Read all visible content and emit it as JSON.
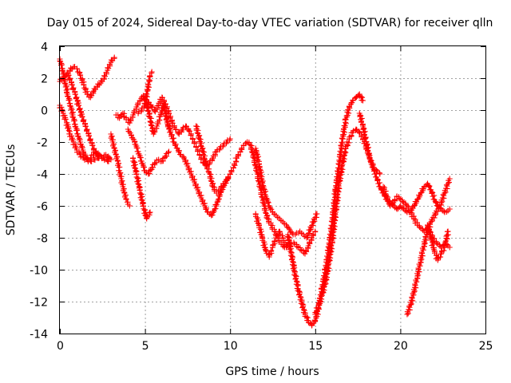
{
  "chart_data": {
    "type": "scatter",
    "title": "Day 015 of 2024, Sidereal Day-to-day VTEC variation (SDTVAR) for receiver qlln",
    "xlabel": "GPS time / hours",
    "ylabel": "SDTVAR / TECUs",
    "xlim": [
      0,
      25
    ],
    "ylim": [
      -14,
      4
    ],
    "x_ticks": [
      0,
      5,
      10,
      15,
      20,
      25
    ],
    "y_ticks": [
      -14,
      -12,
      -10,
      -8,
      -6,
      -4,
      -2,
      0,
      2,
      4
    ],
    "x_tick_labels": [
      "0",
      "5",
      "10",
      "15",
      "20",
      "25"
    ],
    "y_tick_labels": [
      "-14",
      "-12",
      "-10",
      "-8",
      "-6",
      "-4",
      "-2",
      "0",
      "2",
      "4"
    ],
    "grid": true,
    "marker": "+",
    "color": "#ff0000",
    "series": [
      {
        "x": [
          0.0,
          0.15,
          0.3,
          0.45,
          0.6,
          0.75,
          0.9,
          1.05,
          1.2,
          1.35,
          1.5,
          1.65,
          1.8,
          1.95,
          2.1,
          2.25,
          2.4,
          2.55,
          2.7,
          2.85,
          3.0
        ],
        "values": [
          3.2,
          2.6,
          1.8,
          1.0,
          0.4,
          -0.3,
          -0.9,
          -1.5,
          -2.0,
          -2.5,
          -2.9,
          -3.1,
          -3.0,
          -2.8,
          -2.6,
          -2.7,
          -2.9,
          -3.0,
          -2.8,
          -2.9,
          -3.1
        ]
      },
      {
        "x": [
          0.0,
          0.2,
          0.4,
          0.6,
          0.8,
          1.0,
          1.2,
          1.4,
          1.6,
          1.8,
          2.0,
          2.2,
          2.4,
          2.6,
          2.8,
          3.0,
          3.2
        ],
        "values": [
          1.8,
          2.0,
          2.2,
          2.5,
          2.7,
          2.6,
          2.2,
          1.6,
          1.0,
          0.8,
          1.2,
          1.5,
          1.7,
          2.0,
          2.5,
          3.0,
          3.3
        ]
      },
      {
        "x": [
          0.0,
          0.2,
          0.4,
          0.6,
          0.8,
          1.0,
          1.2,
          1.4,
          1.6,
          1.8,
          2.0,
          2.2,
          2.4,
          2.6,
          2.8,
          3.0
        ],
        "values": [
          0.3,
          -0.2,
          -0.8,
          -1.5,
          -2.0,
          -2.5,
          -2.8,
          -3.0,
          -3.1,
          -3.2,
          -3.1,
          -3.0,
          -2.9,
          -3.0,
          -3.2,
          -3.1
        ]
      },
      {
        "x": [
          0.5,
          0.7,
          0.9,
          1.1,
          1.3,
          1.5,
          1.7,
          1.9,
          2.1,
          2.3
        ],
        "values": [
          2.2,
          1.6,
          1.0,
          0.3,
          -0.4,
          -1.0,
          -1.6,
          -2.2,
          -2.7,
          -3.0
        ]
      },
      {
        "x": [
          3.0,
          3.1,
          3.2,
          3.3,
          3.4,
          3.5,
          3.6,
          3.7,
          3.8,
          3.9,
          4.0,
          4.1
        ],
        "values": [
          -1.5,
          -2.0,
          -2.4,
          -2.8,
          -3.2,
          -3.8,
          -4.3,
          -4.8,
          -5.2,
          -5.6,
          -5.9,
          -6.0
        ]
      },
      {
        "x": [
          3.3,
          3.5,
          3.7,
          3.9,
          4.1,
          4.3,
          4.5,
          4.7,
          4.9,
          5.1,
          5.3,
          5.5,
          5.7,
          5.9,
          6.1,
          6.3,
          6.5
        ],
        "values": [
          -0.3,
          -0.5,
          -0.2,
          -0.6,
          -0.8,
          -0.3,
          0.2,
          0.6,
          0.9,
          0.4,
          -0.5,
          -1.5,
          -1.0,
          -0.4,
          0.4,
          -0.7,
          -1.3
        ]
      },
      {
        "x": [
          4.0,
          4.2,
          4.4,
          4.6,
          4.8,
          5.0,
          5.2,
          5.4,
          5.6,
          5.8,
          6.0,
          6.2,
          6.4
        ],
        "values": [
          -1.2,
          -1.6,
          -2.0,
          -2.6,
          -3.2,
          -3.8,
          -4.0,
          -3.6,
          -3.3,
          -3.1,
          -3.2,
          -2.9,
          -2.6
        ]
      },
      {
        "x": [
          4.3,
          4.5,
          4.7,
          4.9,
          5.1,
          5.3
        ],
        "values": [
          -3.0,
          -4.0,
          -5.0,
          -6.0,
          -6.8,
          -6.4
        ]
      },
      {
        "x": [
          5.0,
          5.1,
          5.2,
          5.3,
          5.4
        ],
        "values": [
          0.4,
          1.0,
          1.6,
          2.1,
          2.4
        ]
      },
      {
        "x": [
          4.6,
          4.8,
          5.0,
          5.2,
          5.4,
          5.6,
          5.8,
          6.0,
          6.2,
          6.4,
          6.6,
          6.8,
          7.0,
          7.2,
          7.4,
          7.6,
          7.8,
          8.0,
          8.2,
          8.4,
          8.6,
          8.8,
          9.0,
          9.2,
          9.4,
          9.6,
          9.8,
          10.0
        ],
        "values": [
          -0.2,
          0.0,
          0.3,
          0.5,
          0.2,
          -0.1,
          0.3,
          0.8,
          0.4,
          -0.2,
          -0.8,
          -1.2,
          -1.5,
          -1.2,
          -1.0,
          -1.3,
          -1.8,
          -2.3,
          -2.8,
          -3.3,
          -3.5,
          -3.3,
          -3.0,
          -2.6,
          -2.4,
          -2.2,
          -2.0,
          -1.8
        ]
      },
      {
        "x": [
          6.3,
          6.5,
          6.7,
          6.9,
          7.1,
          7.3,
          7.5,
          7.7,
          7.9,
          8.1,
          8.3,
          8.5,
          8.7,
          8.9,
          9.1,
          9.3,
          9.5,
          9.7,
          9.9
        ],
        "values": [
          -0.8,
          -1.4,
          -2.0,
          -2.4,
          -2.8,
          -3.0,
          -3.5,
          -4.0,
          -4.5,
          -5.0,
          -5.5,
          -6.0,
          -6.4,
          -6.6,
          -6.2,
          -5.6,
          -5.0,
          -4.6,
          -4.2
        ]
      },
      {
        "x": [
          8.0,
          8.2,
          8.4,
          8.6,
          8.8,
          9.0,
          9.2,
          9.4,
          9.6,
          9.8,
          10.0,
          10.2,
          10.4,
          10.6,
          10.8,
          11.0,
          11.2,
          11.4,
          11.6,
          11.8,
          12.0,
          12.2,
          12.4,
          12.6,
          12.8,
          13.0,
          13.2,
          13.4,
          13.6,
          13.8,
          14.0,
          14.2,
          14.4,
          14.6,
          14.8,
          15.0
        ],
        "values": [
          -1.0,
          -1.8,
          -2.6,
          -3.4,
          -4.0,
          -4.8,
          -5.2,
          -5.0,
          -4.6,
          -4.4,
          -4.0,
          -3.6,
          -3.0,
          -2.6,
          -2.2,
          -2.0,
          -2.2,
          -3.0,
          -4.0,
          -5.0,
          -6.0,
          -6.8,
          -7.2,
          -7.6,
          -8.0,
          -8.4,
          -8.6,
          -8.5,
          -8.3,
          -8.4,
          -8.6,
          -8.8,
          -9.0,
          -8.5,
          -8.0,
          -7.6
        ]
      },
      {
        "x": [
          11.5,
          11.7,
          11.9,
          12.1,
          12.3,
          12.5,
          12.7,
          12.9,
          13.1,
          13.3,
          13.5,
          13.7,
          13.9,
          14.1,
          14.3,
          14.5,
          14.7,
          14.9,
          15.1
        ],
        "values": [
          -2.4,
          -3.4,
          -4.6,
          -5.4,
          -6.0,
          -6.4,
          -6.6,
          -6.8,
          -7.0,
          -7.2,
          -7.5,
          -7.8,
          -7.7,
          -7.6,
          -7.8,
          -8.0,
          -7.5,
          -7.0,
          -6.5
        ]
      },
      {
        "x": [
          11.5,
          11.7,
          11.9,
          12.1,
          12.3,
          12.5,
          12.7,
          12.9,
          13.1,
          13.3
        ],
        "values": [
          -6.5,
          -7.2,
          -8.0,
          -8.8,
          -9.2,
          -8.6,
          -8.0,
          -7.6,
          -8.0,
          -8.6
        ]
      },
      {
        "x": [
          13.4,
          13.6,
          13.8,
          14.0,
          14.2,
          14.4,
          14.6,
          14.8,
          15.0,
          15.2,
          15.4,
          15.6,
          15.8,
          16.0,
          16.2,
          16.4,
          16.6,
          16.8,
          17.0,
          17.2,
          17.4,
          17.6,
          17.8
        ],
        "values": [
          -7.8,
          -9.0,
          -10.2,
          -11.2,
          -12.0,
          -12.8,
          -13.2,
          -13.5,
          -13.2,
          -12.4,
          -11.2,
          -10.0,
          -8.6,
          -7.0,
          -5.0,
          -3.4,
          -1.8,
          -0.6,
          0.2,
          0.6,
          0.8,
          1.0,
          0.6
        ]
      },
      {
        "x": [
          15.0,
          15.2,
          15.4,
          15.6,
          15.8,
          16.0,
          16.2,
          16.4,
          16.6,
          16.8,
          17.0,
          17.2,
          17.4,
          17.6,
          17.8,
          18.0,
          18.2,
          18.4,
          18.6,
          18.8
        ],
        "values": [
          -12.8,
          -12.2,
          -11.6,
          -10.8,
          -9.6,
          -8.2,
          -6.4,
          -4.6,
          -3.4,
          -2.4,
          -1.8,
          -1.4,
          -1.2,
          -1.4,
          -1.8,
          -2.4,
          -3.0,
          -3.6,
          -3.8,
          -4.0
        ]
      },
      {
        "x": [
          17.6,
          17.8,
          18.0,
          18.2,
          18.4,
          18.6,
          18.8,
          19.0,
          19.2,
          19.4,
          19.6,
          19.8,
          20.0,
          20.2,
          20.4,
          20.6,
          20.8,
          21.0,
          21.2,
          21.4,
          21.6,
          21.8,
          22.0,
          22.2,
          22.4,
          22.6,
          22.8,
          22.9
        ],
        "values": [
          -0.2,
          -1.0,
          -2.0,
          -3.0,
          -3.6,
          -4.2,
          -4.8,
          -5.2,
          -5.6,
          -5.8,
          -6.0,
          -6.2,
          -6.0,
          -6.2,
          -6.4,
          -6.3,
          -6.0,
          -5.6,
          -5.2,
          -4.8,
          -4.6,
          -5.0,
          -5.6,
          -6.0,
          -6.2,
          -6.4,
          -6.3,
          -6.2
        ]
      },
      {
        "x": [
          19.0,
          19.2,
          19.4,
          19.6,
          19.8,
          20.0,
          20.2,
          20.4,
          20.6,
          20.8,
          21.0,
          21.2,
          21.4,
          21.6,
          21.8,
          22.0,
          22.2,
          22.4,
          22.6,
          22.8,
          22.9
        ],
        "values": [
          -4.8,
          -5.4,
          -6.0,
          -5.8,
          -5.4,
          -5.6,
          -5.8,
          -6.0,
          -6.4,
          -6.8,
          -7.2,
          -7.4,
          -7.6,
          -7.4,
          -7.8,
          -8.2,
          -8.4,
          -8.6,
          -8.4,
          -8.5,
          -8.6
        ]
      },
      {
        "x": [
          20.4,
          20.6,
          20.8,
          21.0,
          21.2,
          21.4,
          21.6,
          21.8,
          22.0,
          22.2,
          22.4,
          22.6,
          22.8,
          22.9
        ],
        "values": [
          -12.8,
          -12.2,
          -11.4,
          -10.4,
          -9.4,
          -8.4,
          -7.6,
          -7.0,
          -6.6,
          -6.2,
          -5.8,
          -5.2,
          -4.6,
          -4.3
        ]
      },
      {
        "x": [
          21.6,
          21.8,
          22.0,
          22.2,
          22.4,
          22.6,
          22.8
        ],
        "values": [
          -7.2,
          -8.0,
          -8.8,
          -9.4,
          -9.0,
          -8.6,
          -7.6
        ]
      }
    ]
  }
}
